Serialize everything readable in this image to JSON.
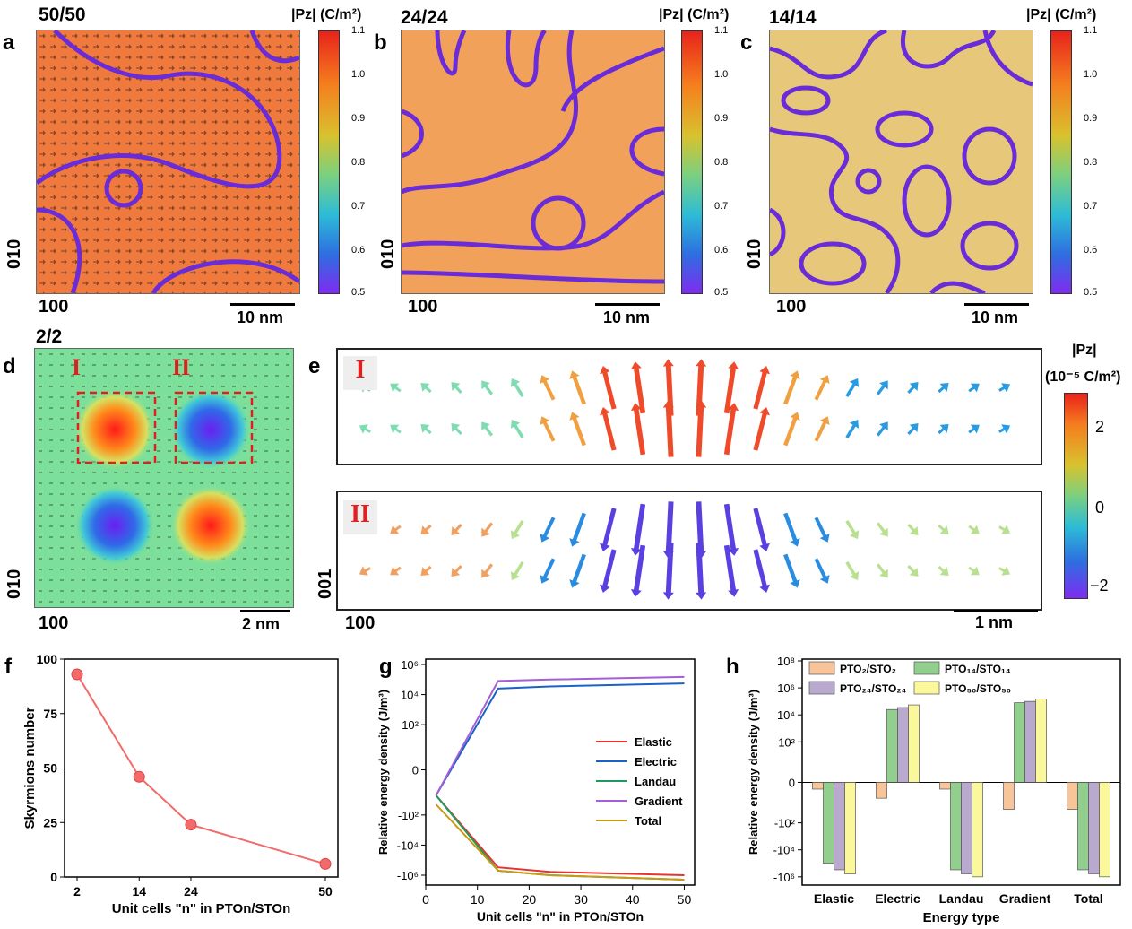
{
  "panels": {
    "a": {
      "label": "a",
      "title": "50/50",
      "scale": "10 nm",
      "axis_y": "010",
      "axis_x": "100"
    },
    "b": {
      "label": "b",
      "title": "24/24",
      "scale": "10 nm",
      "axis_y": "010",
      "axis_x": "100"
    },
    "c": {
      "label": "c",
      "title": "14/14",
      "scale": "10 nm",
      "axis_y": "010",
      "axis_x": "100"
    },
    "d": {
      "label": "d",
      "title": "2/2",
      "scale": "2 nm",
      "axis_y": "010",
      "axis_x": "100",
      "box1": "I",
      "box2": "II"
    },
    "e": {
      "label": "e",
      "tag1": "I",
      "tag2": "II",
      "scale": "1 nm",
      "axis_y": "001",
      "axis_x": "100"
    },
    "f": {
      "label": "f"
    },
    "g": {
      "label": "g"
    },
    "h": {
      "label": "h"
    }
  },
  "colorbar_top": {
    "title": "|Pz| (C/m²)",
    "ticks": [
      "1.1",
      "1.0",
      "0.9",
      "0.8",
      "0.7",
      "0.6",
      "0.5"
    ]
  },
  "colorbar_e": {
    "title_line1": "|Pz|",
    "title_line2": "(10⁻⁵ C/m²)",
    "ticks": [
      "2",
      "0",
      "−2"
    ]
  },
  "colors": {
    "orange": "#f07a3e",
    "yellow_green": "#e7c87a",
    "domain_wall": "#6a2bd8",
    "pink_line": "#f26a6a"
  },
  "chart_data": [
    {
      "type": "line",
      "panel": "f",
      "xlabel": "Unit cells \"n\" in PTOn/STOn",
      "ylabel": "Skyrmions number",
      "x": [
        2,
        14,
        24,
        50
      ],
      "values": [
        93,
        46,
        24,
        6
      ],
      "xticks": [
        "2",
        "14",
        "24",
        "50"
      ],
      "yticks": [
        "0",
        "25",
        "50",
        "75",
        "100"
      ],
      "ylim": [
        0,
        100
      ]
    },
    {
      "type": "line",
      "panel": "g",
      "xlabel": "Unit cells \"n\" in PTOn/STOn",
      "ylabel": "Relative energy density (J/m³)",
      "yscale": "symlog",
      "x": [
        2,
        14,
        24,
        50
      ],
      "xticks": [
        "0",
        "10",
        "20",
        "30",
        "40",
        "50"
      ],
      "yticks": [
        "10⁶",
        "10⁴",
        "10²",
        "0",
        "-10²",
        "-10⁴",
        "-10⁶"
      ],
      "series": [
        {
          "name": "Elastic",
          "color": "#e8332f",
          "values": [
            -5,
            -300000,
            -600000,
            -1000000
          ]
        },
        {
          "name": "Electric",
          "color": "#1a62c6",
          "values": [
            -5,
            25000,
            35000,
            55000
          ]
        },
        {
          "name": "Landau",
          "color": "#1e9b5c",
          "values": [
            -5,
            -500000,
            -1000000,
            -2000000
          ]
        },
        {
          "name": "Gradient",
          "color": "#a45fd6",
          "values": [
            -5,
            80000,
            100000,
            150000
          ]
        },
        {
          "name": "Total",
          "color": "#c89b12",
          "values": [
            -20,
            -500000,
            -1000000,
            -2000000
          ]
        }
      ]
    },
    {
      "type": "bar",
      "panel": "h",
      "xlabel": "Energy type",
      "ylabel": "Relative energy density (J/m³)",
      "yscale": "symlog",
      "categories": [
        "Elastic",
        "Electric",
        "Landau",
        "Gradient",
        "Total"
      ],
      "yticks": [
        "10⁸",
        "10⁶",
        "10⁴",
        "10²",
        "0",
        "-10²",
        "-10⁴",
        "-10⁶"
      ],
      "legend": [
        "PTO₂/STO₂",
        "PTO₁₄/STO₁₄",
        "PTO₂₄/STO₂₄",
        "PTO₅₀/STO₅₀"
      ],
      "series": [
        {
          "name": "PTO₂/STO₂",
          "color": "#f8c49a",
          "values": [
            -0.5,
            -1.5,
            -0.5,
            -10,
            -10
          ]
        },
        {
          "name": "PTO₁₄/STO₁₄",
          "color": "#92cf8f",
          "values": [
            -100000,
            25000,
            -300000,
            80000,
            -300000
          ]
        },
        {
          "name": "PTO₂₄/STO₂₄",
          "color": "#b9a9cf",
          "values": [
            -300000,
            35000,
            -600000,
            100000,
            -600000
          ]
        },
        {
          "name": "PTO₅₀/STO₅₀",
          "color": "#fbf89b",
          "values": [
            -600000,
            55000,
            -1000000,
            150000,
            -1000000
          ]
        }
      ]
    }
  ]
}
